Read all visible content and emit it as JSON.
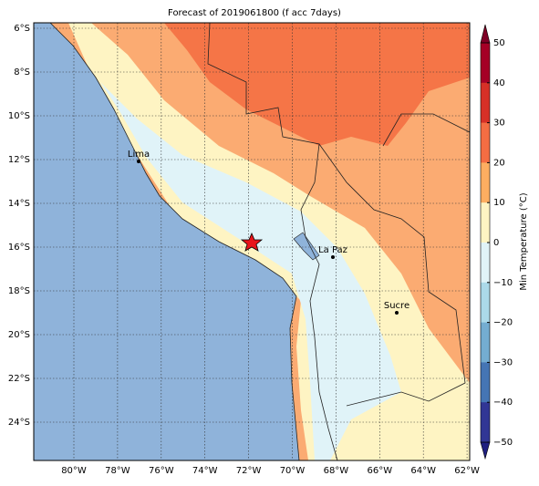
{
  "title": "Forecast of 2019061800 (f acc 7days)",
  "latitude_labels": [
    "6°S",
    "8°S",
    "10°S",
    "12°S",
    "14°S",
    "16°S",
    "18°S",
    "20°S",
    "22°S",
    "24°S"
  ],
  "longitude_labels": [
    "80°W",
    "78°W",
    "76°W",
    "74°W",
    "72°W",
    "70°W",
    "68°W",
    "66°W",
    "64°W",
    "62°W"
  ],
  "colorbar": {
    "label": "Min Temperature (°C)",
    "ticks": [
      "50",
      "40",
      "30",
      "20",
      "10",
      "0",
      "−10",
      "−20",
      "−30",
      "−40",
      "−50"
    ]
  },
  "cities": [
    "Lima",
    "La Paz",
    "Sucre"
  ]
}
